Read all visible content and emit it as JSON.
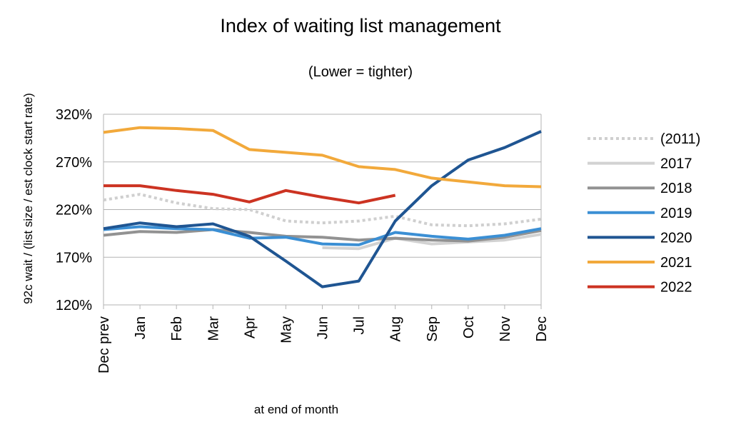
{
  "chart_data": {
    "type": "line",
    "title": "Index of waiting list management",
    "subtitle": "(Lower = tighter)",
    "ylabel": "92c wait / (list size / est clock start rate)",
    "xlabel": "at end of month",
    "categories": [
      "Dec prev",
      "Jan",
      "Feb",
      "Mar",
      "Apr",
      "May",
      "Jun",
      "Jul",
      "Aug",
      "Sep",
      "Oct",
      "Nov",
      "Dec"
    ],
    "y_ticks": [
      "120%",
      "170%",
      "220%",
      "270%",
      "320%"
    ],
    "ylim": [
      120,
      320
    ],
    "grid": "horizontal",
    "legend_position": "right",
    "series": [
      {
        "name": "(2011)",
        "color": "#cfcfcf",
        "dashed": true,
        "values": [
          230,
          236,
          227,
          221,
          220,
          208,
          206,
          208,
          213,
          204,
          203,
          205,
          210
        ]
      },
      {
        "name": "2017",
        "color": "#d2d2d2",
        "dashed": false,
        "values": [
          null,
          null,
          null,
          null,
          null,
          null,
          180,
          179,
          190,
          184,
          186,
          188,
          194
        ]
      },
      {
        "name": "2018",
        "color": "#929292",
        "dashed": false,
        "values": [
          193,
          197,
          196,
          199,
          196,
          192,
          191,
          188,
          190,
          188,
          187,
          191,
          198
        ]
      },
      {
        "name": "2019",
        "color": "#3b8fd4",
        "dashed": false,
        "values": [
          199,
          202,
          200,
          199,
          190,
          191,
          184,
          183,
          196,
          192,
          189,
          193,
          200
        ]
      },
      {
        "name": "2020",
        "color": "#1f5592",
        "dashed": false,
        "values": [
          200,
          206,
          202,
          205,
          192,
          166,
          139,
          145,
          208,
          245,
          272,
          285,
          302
        ]
      },
      {
        "name": "2021",
        "color": "#f2a93b",
        "dashed": false,
        "values": [
          301,
          306,
          305,
          303,
          283,
          280,
          277,
          265,
          262,
          253,
          249,
          245,
          244
        ]
      },
      {
        "name": "2022",
        "color": "#cc3322",
        "dashed": false,
        "values": [
          245,
          245,
          240,
          236,
          228,
          240,
          233,
          227,
          235,
          null,
          null,
          null,
          null
        ]
      }
    ]
  }
}
